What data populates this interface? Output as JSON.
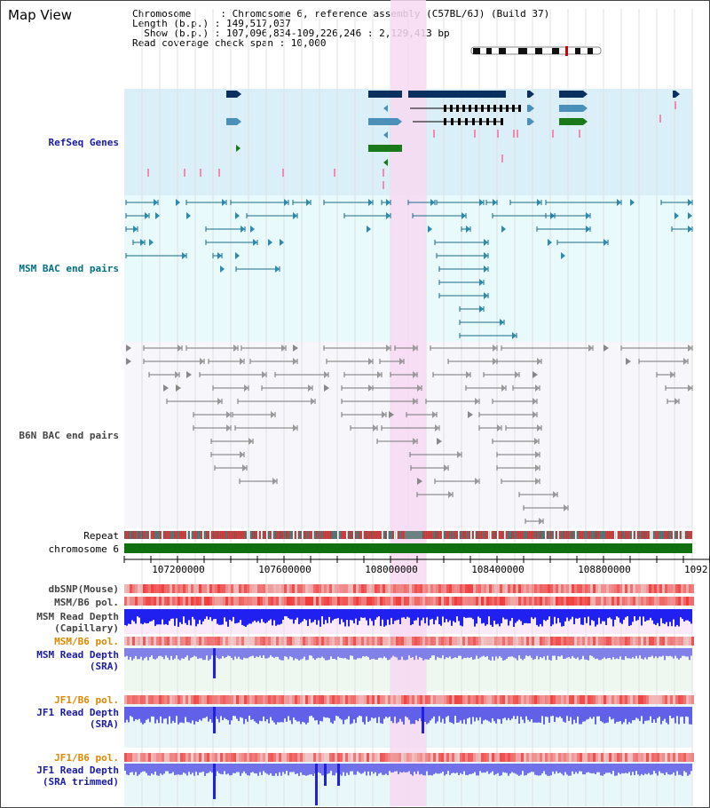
{
  "header": {
    "title": "Map View",
    "chromosome_line": "Chromosome     : Chromosome 6, reference assembly (C57BL/6J) (Build 37)",
    "length_line": "Length (b.p.) : 149,517,037",
    "show_line": "  Show (b.p.) : 107,096,834-109,226,246 : 2,129,413 bp",
    "coverage_line": "Read coverage check span : 10,000"
  },
  "tracks": {
    "refseq": "RefSeq Genes",
    "msm_bac": "MSM BAC end pairs",
    "b6n_bac": "B6N BAC end pairs",
    "repeat": "Repeat",
    "chromosome": "chromosome 6",
    "dbsnp": "dbSNP(Mouse)",
    "msm_b6_pol_1": "MSM/B6 pol.",
    "msm_read_depth_cap_1": "MSM Read Depth",
    "msm_read_depth_cap_2": "(Capillary)",
    "msm_b6_pol_2": "MSM/B6 pol.",
    "msm_read_depth_sra_1": "MSM Read Depth",
    "msm_read_depth_sra_2": "(SRA)",
    "jf1_b6_pol_1": "JF1/B6 pol.",
    "jf1_read_depth_sra_1": "JF1 Read Depth",
    "jf1_read_depth_sra_2": "(SRA)",
    "jf1_b6_pol_2": "JF1/B6 pol.",
    "jf1_read_depth_trim_1": "JF1 Read Depth",
    "jf1_read_depth_trim_2": "(SRA trimmed)"
  },
  "axis": {
    "ticks": [
      "107200000",
      "107600000",
      "108000000",
      "108400000",
      "108800000"
    ],
    "end_label": "1092"
  },
  "colors": {
    "refseq_bg": "#dbeff9",
    "msm_bg": "#e8fafb",
    "b6n_bg": "#f6f6fb",
    "highlight": "#f7d9f2",
    "label_blue": "#1a1aa6",
    "label_teal": "#007080",
    "label_gray": "#444444",
    "label_orange": "#e08800",
    "gene_dark": "#0a3060",
    "gene_mid": "#4a90b8",
    "gene_green": "#1a7a1a",
    "msm_line": "#1a6a8a",
    "chromosome_bar": "#107010"
  }
}
